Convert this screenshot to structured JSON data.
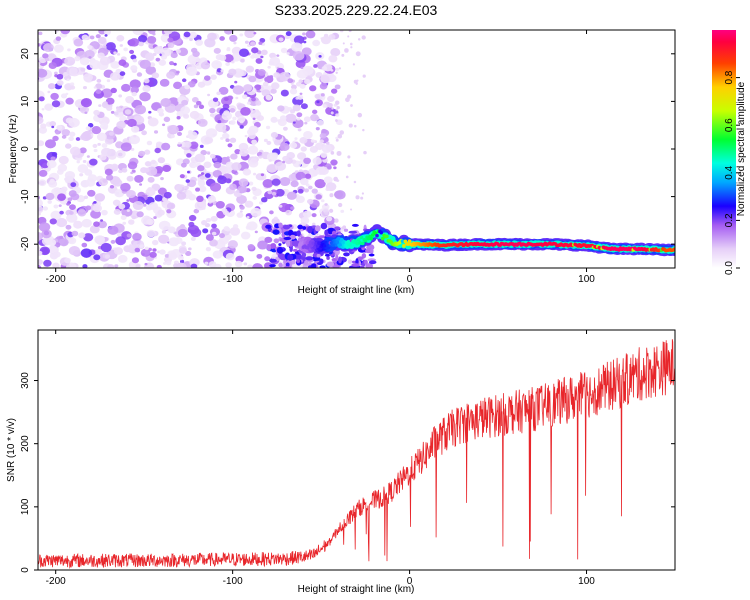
{
  "figure": {
    "title": "S233.2025.229.22.24.E03"
  },
  "colors": {
    "noise": "#8A2BE2",
    "signal_line": "#E8262B"
  },
  "chart_data": [
    {
      "type": "heatmap",
      "xlabel": "Height of straight line (km)",
      "ylabel": "Frequency (Hz)",
      "xlim": [
        -210,
        150
      ],
      "ylim": [
        -25,
        25
      ],
      "xticks": [
        "-200",
        "-100",
        "0",
        "100"
      ],
      "xtick_values": [
        -200,
        -100,
        0,
        100
      ],
      "yticks": [
        "20",
        "10",
        "0",
        "-10",
        "-20"
      ],
      "ytick_values": [
        20,
        10,
        0,
        -10,
        -20
      ],
      "colorbar": {
        "label": "Normalized spectral amplitude",
        "range": [
          0,
          1
        ],
        "ticks": [
          "0.0",
          "0.2",
          "0.4",
          "0.6",
          "0.8"
        ],
        "tick_values": [
          0.0,
          0.2,
          0.4,
          0.6,
          0.8
        ],
        "colormap": "rainbow: white-lavender-purple-blue-cyan-green-yellow-orange-red-magenta"
      },
      "noise_region": {
        "x_range": [
          -210,
          -38
        ],
        "freq_range": [
          -25,
          25
        ],
        "amplitude": "low (0.0-0.2)"
      },
      "signal_trace": {
        "points": [
          {
            "x": -60,
            "freq": -20.0,
            "amp": 0.15
          },
          {
            "x": -50,
            "freq": -20.5,
            "amp": 0.25
          },
          {
            "x": -40,
            "freq": -19.5,
            "amp": 0.35
          },
          {
            "x": -35,
            "freq": -20.0,
            "amp": 0.45
          },
          {
            "x": -25,
            "freq": -19.0,
            "amp": 0.5
          },
          {
            "x": -18,
            "freq": -17.5,
            "amp": 0.55
          },
          {
            "x": -10,
            "freq": -19.5,
            "amp": 0.6
          },
          {
            "x": 0,
            "freq": -20.0,
            "amp": 0.75
          },
          {
            "x": 20,
            "freq": -20.2,
            "amp": 0.9
          },
          {
            "x": 40,
            "freq": -20.0,
            "amp": 0.95
          },
          {
            "x": 60,
            "freq": -20.0,
            "amp": 0.97
          },
          {
            "x": 80,
            "freq": -20.0,
            "amp": 0.95
          },
          {
            "x": 100,
            "freq": -20.3,
            "amp": 0.93
          },
          {
            "x": 115,
            "freq": -21.0,
            "amp": 0.97
          },
          {
            "x": 130,
            "freq": -21.0,
            "amp": 0.97
          },
          {
            "x": 145,
            "freq": -21.2,
            "amp": 0.85
          }
        ]
      }
    },
    {
      "type": "line",
      "xlabel": "Height of straight line (km)",
      "ylabel": "SNR (10 * v/v)",
      "xlim": [
        -210,
        150
      ],
      "ylim": [
        0,
        380
      ],
      "xticks": [
        "-200",
        "-100",
        "0",
        "100"
      ],
      "xtick_values": [
        -200,
        -100,
        0,
        100
      ],
      "yticks": [
        "0",
        "100",
        "200",
        "300"
      ],
      "ytick_values": [
        0,
        100,
        200,
        300
      ],
      "series": [
        {
          "color": "#E8262B",
          "x": [
            -210,
            -180,
            -150,
            -120,
            -90,
            -70,
            -55,
            -45,
            -40,
            -35,
            -30,
            -25,
            -20,
            -15,
            -10,
            -5,
            0,
            5,
            10,
            15,
            20,
            25,
            30,
            40,
            50,
            60,
            70,
            80,
            90,
            100,
            110,
            120,
            130,
            140,
            150
          ],
          "y": [
            15,
            15,
            15,
            16,
            17,
            18,
            22,
            45,
            65,
            80,
            95,
            105,
            110,
            115,
            125,
            140,
            155,
            170,
            185,
            205,
            215,
            225,
            232,
            240,
            245,
            250,
            255,
            262,
            270,
            278,
            288,
            298,
            310,
            318,
            325
          ]
        }
      ]
    }
  ]
}
